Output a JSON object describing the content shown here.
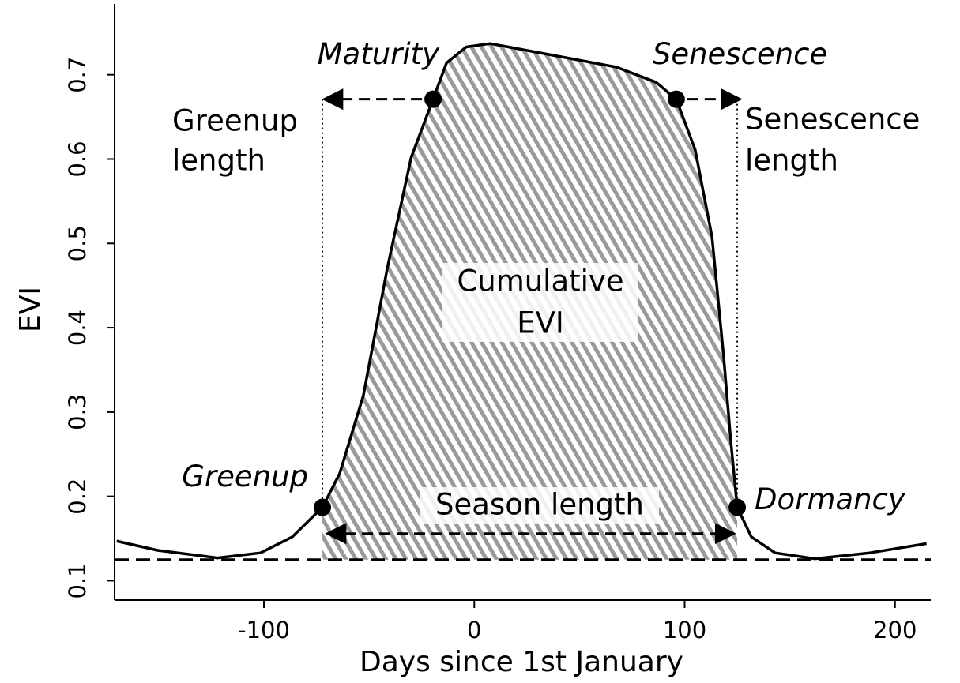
{
  "chart_data": {
    "type": "line",
    "x_label": "Days since 1st January",
    "y_label": "EVI",
    "xlim": [
      -171,
      217
    ],
    "ylim": [
      0.077,
      0.784
    ],
    "xticks": [
      -100,
      0,
      100,
      200
    ],
    "yticks": [
      0.1,
      0.2,
      0.3,
      0.4,
      0.5,
      0.6,
      0.7
    ],
    "series": [
      {
        "color": "#000000",
        "x": [
          -170,
          -150.5,
          -122,
          -101.6,
          -86.5,
          -72.2,
          -64,
          -52.7,
          -41.4,
          -30,
          -19.6,
          -13.2,
          -3.8,
          7.5,
          37.6,
          67.7,
          86.5,
          96,
          105,
          113,
          118.5,
          122,
          125,
          131.7,
          143,
          162,
          188,
          215
        ],
        "values": [
          0.147,
          0.136,
          0.127,
          0.133,
          0.152,
          0.187,
          0.227,
          0.32,
          0.47,
          0.602,
          0.671,
          0.714,
          0.733,
          0.737,
          0.723,
          0.709,
          0.691,
          0.671,
          0.611,
          0.508,
          0.367,
          0.264,
          0.187,
          0.152,
          0.133,
          0.126,
          0.133,
          0.144
        ]
      }
    ],
    "baseline": 0.125,
    "points": [
      {
        "label": "Greenup",
        "x": -72.2,
        "y": 0.187
      },
      {
        "label": "Maturity",
        "x": -19.6,
        "y": 0.671
      },
      {
        "label": "Senescence",
        "x": 96,
        "y": 0.671
      },
      {
        "label": "Dormancy",
        "x": 125,
        "y": 0.187
      }
    ],
    "annotations": {
      "greenup_length": [
        "Greenup",
        "length"
      ],
      "senescence_length": [
        "Senescence",
        "length"
      ],
      "cumulative": [
        "Cumulative",
        "EVI"
      ],
      "season_length": "Season length"
    }
  }
}
